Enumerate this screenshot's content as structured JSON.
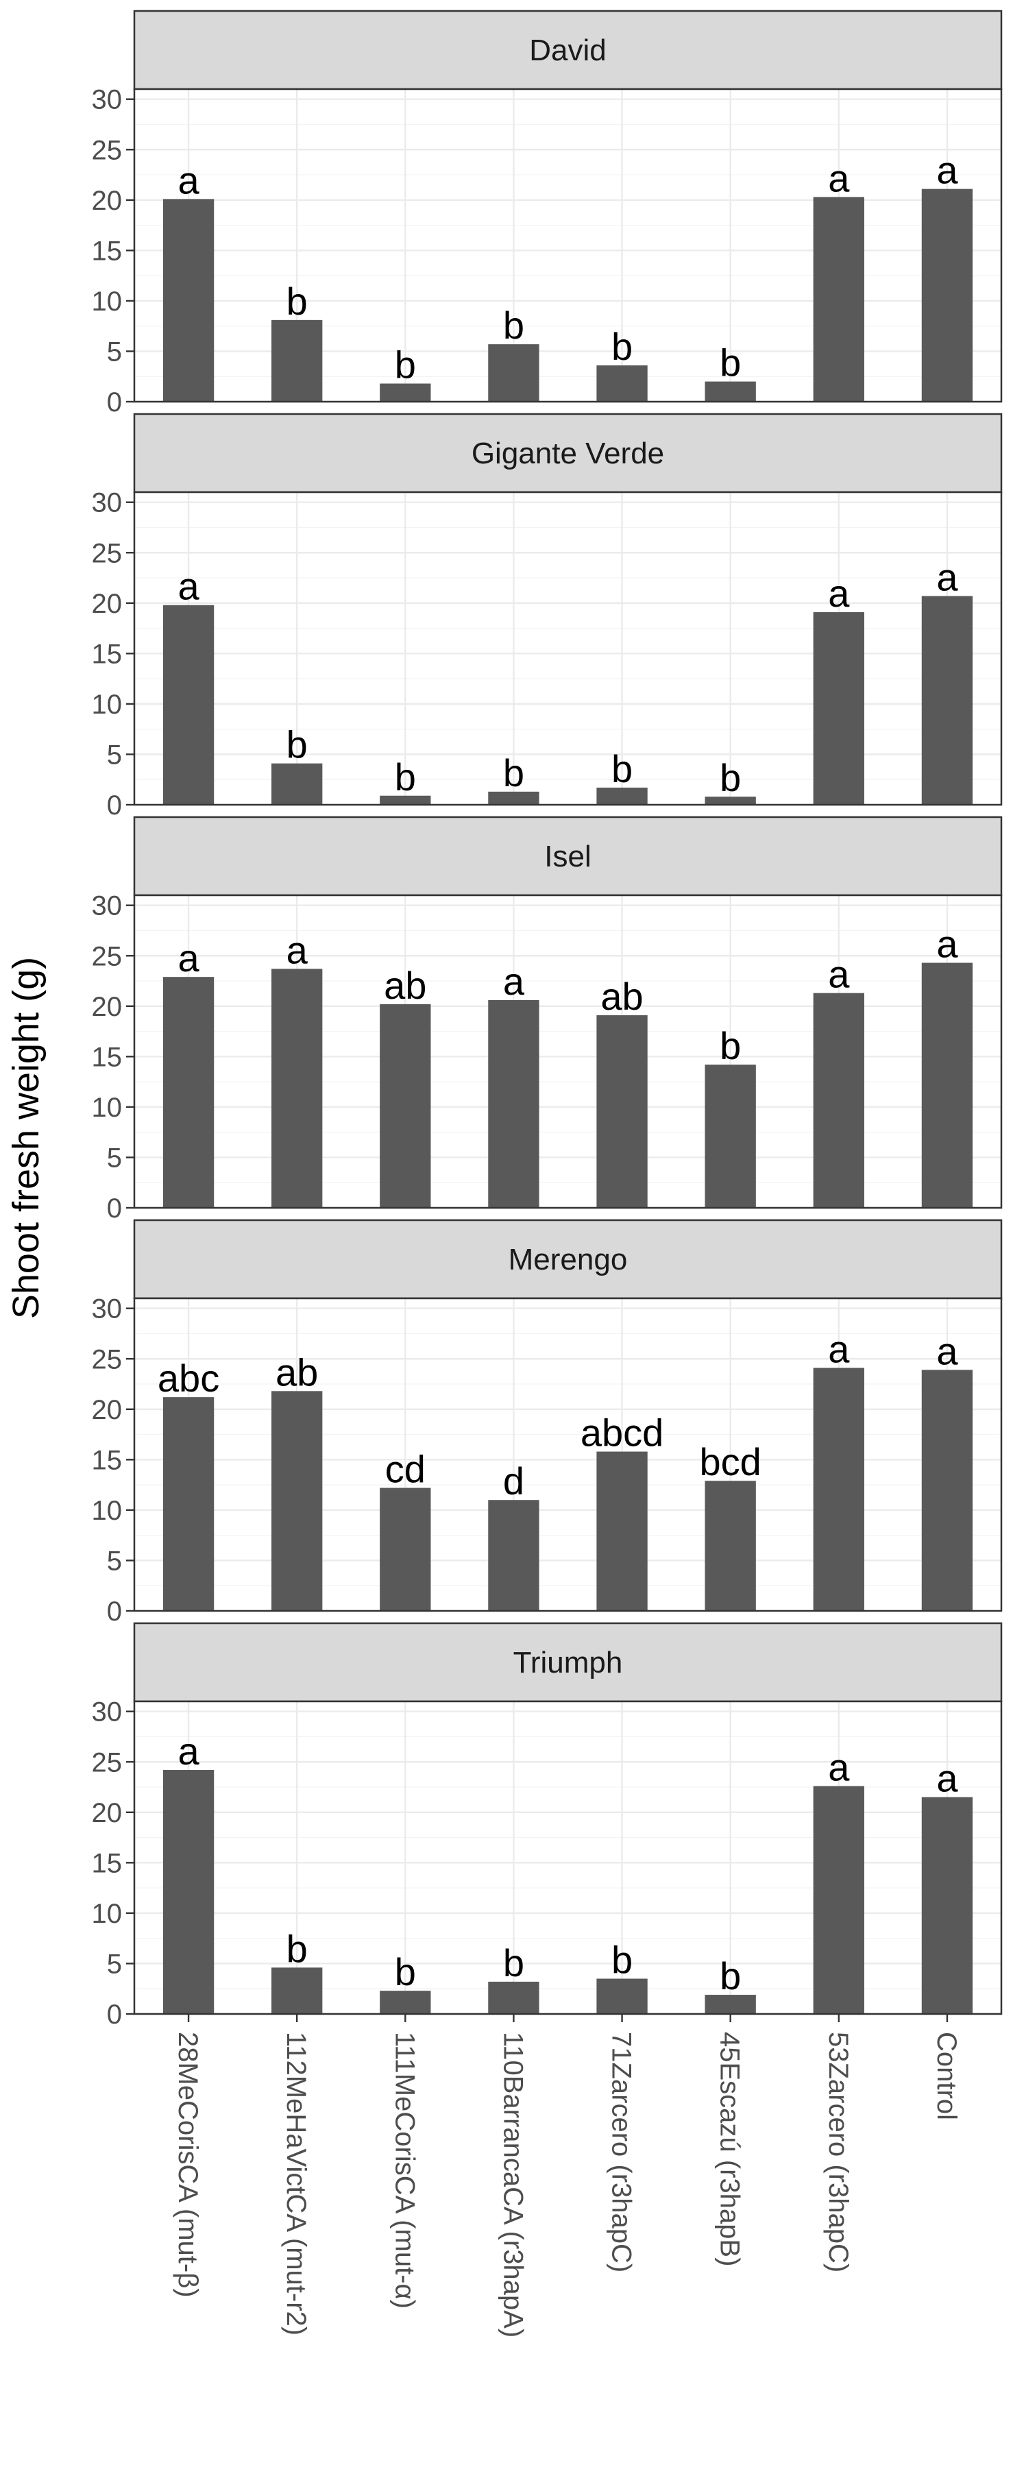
{
  "chart_data": {
    "type": "bar",
    "ylabel": "Shoot fresh weight (g)",
    "xlabel": "",
    "ylim": [
      0,
      31
    ],
    "yticks": [
      0,
      5,
      10,
      15,
      20,
      25,
      30
    ],
    "categories": [
      "28MeCorisCA (mut-β)",
      "112MeHaVictCA (mut-r2)",
      "111MeCorisCA (mut-α)",
      "110BarrancaCA (r3hapA)",
      "71Zarcero (r3hapC)",
      "45Escazú (r3hapB)",
      "53Zarcero (r3hapC)",
      "Control"
    ],
    "panels": [
      {
        "name": "David",
        "values": [
          20.1,
          8.1,
          1.8,
          5.7,
          3.6,
          2.0,
          20.3,
          21.1
        ],
        "letters": [
          "a",
          "b",
          "b",
          "b",
          "b",
          "b",
          "a",
          "a"
        ]
      },
      {
        "name": "Gigante Verde",
        "values": [
          19.8,
          4.1,
          0.9,
          1.3,
          1.7,
          0.8,
          19.1,
          20.7
        ],
        "letters": [
          "a",
          "b",
          "b",
          "b",
          "b",
          "b",
          "a",
          "a"
        ]
      },
      {
        "name": "Isel",
        "values": [
          22.9,
          23.7,
          20.2,
          20.6,
          19.1,
          14.2,
          21.3,
          24.3
        ],
        "letters": [
          "a",
          "a",
          "ab",
          "a",
          "ab",
          "b",
          "a",
          "a"
        ]
      },
      {
        "name": "Merengo",
        "values": [
          21.2,
          21.8,
          12.2,
          11.0,
          15.8,
          12.9,
          24.1,
          23.9
        ],
        "letters": [
          "abc",
          "ab",
          "cd",
          "d",
          "abcd",
          "bcd",
          "a",
          "a"
        ]
      },
      {
        "name": "Triumph",
        "values": [
          24.2,
          4.6,
          2.3,
          3.2,
          3.5,
          1.9,
          22.6,
          21.5
        ],
        "letters": [
          "a",
          "b",
          "b",
          "b",
          "b",
          "b",
          "a",
          "a"
        ]
      }
    ]
  }
}
